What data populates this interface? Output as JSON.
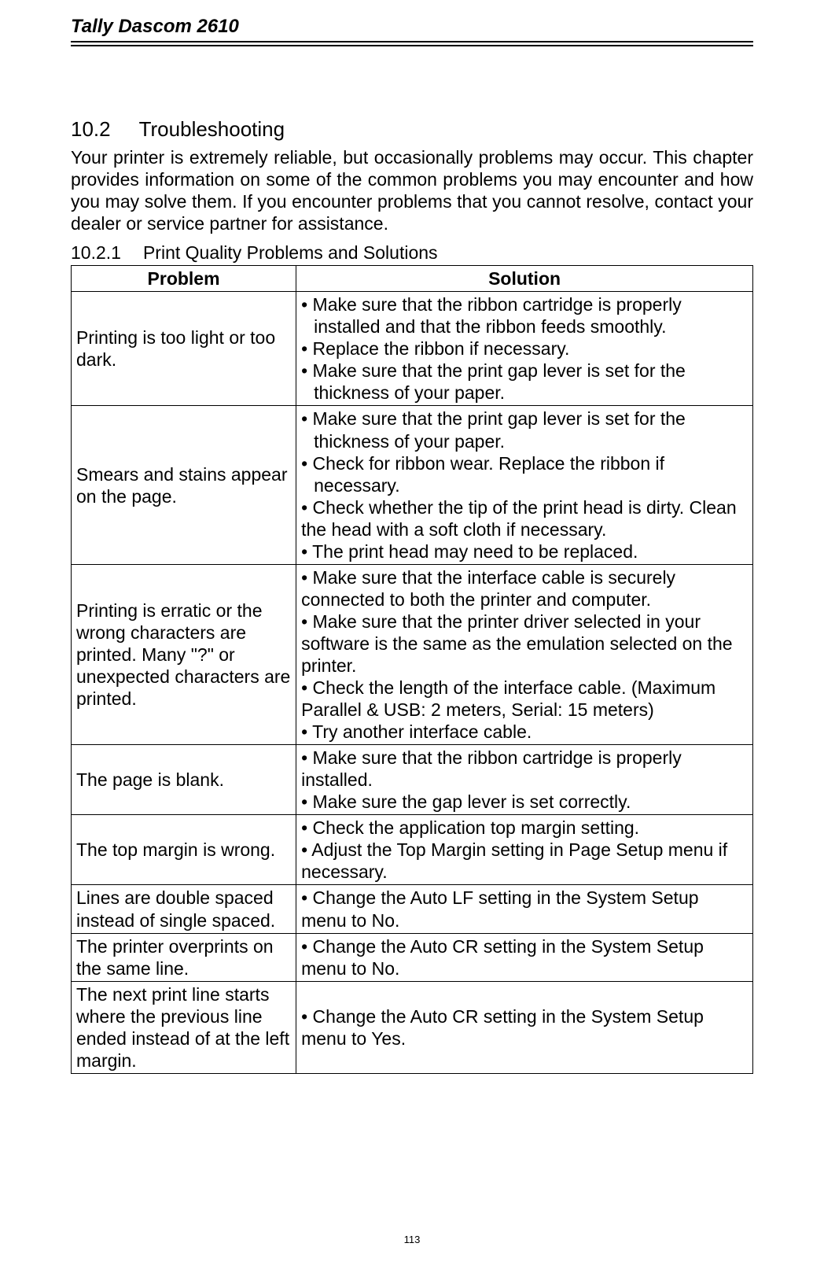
{
  "header": {
    "title": "Tally Dascom 2610"
  },
  "section": {
    "number": "10.2",
    "title": "Troubleshooting",
    "intro": "Your printer is extremely reliable, but occasionally problems may occur. This chapter provides information on some of the common problems you may encounter and how you may solve them. If you encounter problems that you cannot resolve, contact your dealer or service partner for assistance."
  },
  "subsection": {
    "number": "10.2.1",
    "title": "Print Quality Problems and Solutions"
  },
  "table": {
    "headers": {
      "problem": "Problem",
      "solution": "Solution"
    },
    "rows": [
      {
        "problem": "Printing is too light or too dark.",
        "lines": [
          {
            "text": "• Make sure that the ribbon cartridge is properly",
            "indent": false
          },
          {
            "text": "installed and that the ribbon feeds smoothly.",
            "indent": true
          },
          {
            "text": "• Replace the ribbon if necessary.",
            "indent": false
          },
          {
            "text": "• Make sure that the print gap lever is set for the",
            "indent": false
          },
          {
            "text": "thickness of your paper.",
            "indent": true
          }
        ]
      },
      {
        "problem": "Smears and stains appear on the page.",
        "lines": [
          {
            "text": "• Make sure that the print gap lever is set for the",
            "indent": false
          },
          {
            "text": "thickness of your paper.",
            "indent": true
          },
          {
            "text": "• Check for ribbon wear. Replace the ribbon if",
            "indent": false
          },
          {
            "text": "necessary.",
            "indent": true
          },
          {
            "text": "• Check whether the tip of the print head is dirty. Clean the head with a soft cloth if necessary.",
            "indent": false
          },
          {
            "text": "• The print head may need to be replaced.",
            "indent": false
          }
        ]
      },
      {
        "problem": "Printing is erratic or the wrong characters are printed. Many \"?\" or unexpected characters are printed.",
        "lines": [
          {
            "text": "• Make sure that the interface cable is securely connected to both the printer and computer.",
            "indent": false
          },
          {
            "text": "• Make sure that the printer driver selected in your software is the same as the emulation selected on the printer.",
            "indent": false
          },
          {
            "text": "• Check the length of the interface cable. (Maximum Parallel & USB: 2 meters, Serial: 15 meters)",
            "indent": false
          },
          {
            "text": "• Try another interface cable.",
            "indent": false
          }
        ]
      },
      {
        "problem": "The page is blank.",
        "lines": [
          {
            "text": "• Make sure that the ribbon cartridge is properly installed.",
            "indent": false
          },
          {
            "text": "• Make sure the gap lever is set correctly.",
            "indent": false
          }
        ]
      },
      {
        "problem": "The top margin is wrong.",
        "lines": [
          {
            "text": "• Check the application top margin setting.",
            "indent": false
          },
          {
            "text": "• Adjust the Top Margin setting in Page Setup menu if necessary.",
            "indent": false
          }
        ]
      },
      {
        "problem": "Lines are double spaced instead of single spaced.",
        "lines": [
          {
            "text": "• Change the Auto LF setting in the System Setup menu to No.",
            "indent": false
          }
        ]
      },
      {
        "problem": "The printer overprints on the same line.",
        "lines": [
          {
            "text": "• Change the Auto CR setting in the System Setup menu to No.",
            "indent": false
          }
        ]
      },
      {
        "problem": "The next print line starts where the previous line ended instead of at the left margin.",
        "lines": [
          {
            "text": "• Change the Auto CR setting in the System Setup menu to Yes.",
            "indent": false
          }
        ]
      }
    ]
  },
  "page_number": "113"
}
